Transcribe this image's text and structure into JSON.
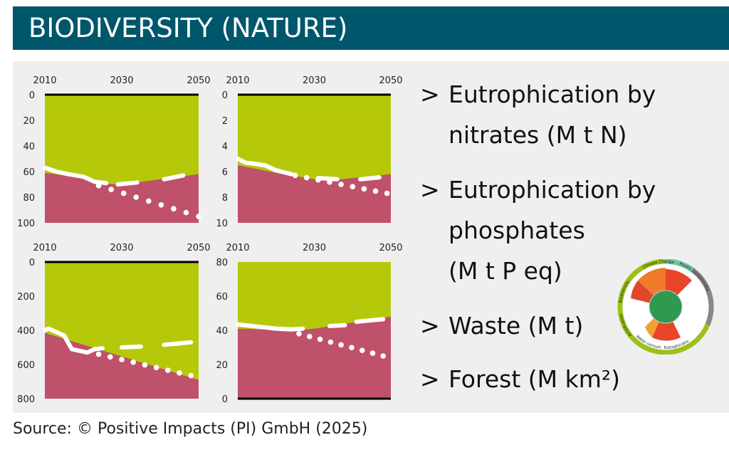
{
  "title": "BIODIVERSITY (NATURE)",
  "bullets": [
    {
      "marker": ">",
      "lines": [
        "Eutrophication by",
        "nitrates (M t N)"
      ]
    },
    {
      "marker": ">",
      "lines": [
        "Eutrophication by",
        "phosphates",
        "(M t P eq)"
      ]
    },
    {
      "marker": ">",
      "lines": [
        "Waste (M t)"
      ]
    },
    {
      "marker": ">",
      "lines": [
        "Forest (M km²)"
      ]
    }
  ],
  "source": "Source: © Positive Impacts (PI) GmbH (2025)",
  "wheel_labels": [
    "Biodiversity",
    "Climate Change",
    "Plastic contamination",
    "Eutrophication N/P",
    "Acidification",
    "Water consumption"
  ],
  "colors": {
    "banner": "#00566a",
    "safe": "#b5c90a",
    "risk": "#c0516a",
    "line": "#ffffff"
  },
  "chart_data": [
    {
      "type": "area",
      "title": "Eutrophication by nitrates (M t N)",
      "x_ticks": [
        "2010",
        "2030",
        "2050"
      ],
      "xlim": [
        2010,
        2050
      ],
      "y_ticks": [
        "0",
        "20",
        "40",
        "60",
        "80",
        "100"
      ],
      "ylim": [
        0,
        100
      ],
      "inverted": true,
      "boundary": [
        [
          2010,
          61
        ],
        [
          2020,
          65
        ],
        [
          2025,
          69
        ],
        [
          2029,
          70
        ],
        [
          2035,
          68
        ],
        [
          2040,
          66
        ],
        [
          2050,
          62
        ]
      ],
      "historical": [
        [
          2010,
          57
        ],
        [
          2013,
          60
        ],
        [
          2016,
          62
        ],
        [
          2020,
          64
        ],
        [
          2023,
          68
        ],
        [
          2026,
          69
        ]
      ],
      "trend": [
        [
          2024,
          71
        ],
        [
          2050,
          95
        ]
      ],
      "target": [
        [
          [
            2029,
            70
          ],
          [
            2034,
            68.5
          ]
        ],
        [
          [
            2041,
            66
          ],
          [
            2046,
            63
          ]
        ]
      ]
    },
    {
      "type": "area",
      "title": "Eutrophication by phosphates (M t P eq)",
      "x_ticks": [
        "2010",
        "2030",
        "2050"
      ],
      "xlim": [
        2010,
        2050
      ],
      "y_ticks": [
        "0",
        "2",
        "4",
        "6",
        "8",
        "10"
      ],
      "ylim": [
        0,
        10
      ],
      "inverted": true,
      "boundary": [
        [
          2010,
          5.5
        ],
        [
          2020,
          6.1
        ],
        [
          2030,
          6.6
        ],
        [
          2037,
          6.6
        ],
        [
          2050,
          6.2
        ]
      ],
      "historical": [
        [
          2010,
          5.0
        ],
        [
          2012,
          5.3
        ],
        [
          2017,
          5.5
        ],
        [
          2020,
          5.9
        ],
        [
          2024,
          6.2
        ]
      ],
      "trend": [
        [
          2025,
          6.3
        ],
        [
          2049,
          7.7
        ]
      ],
      "target": [
        [
          [
            2031,
            6.5
          ],
          [
            2036,
            6.6
          ]
        ],
        [
          [
            2042,
            6.6
          ],
          [
            2047,
            6.45
          ]
        ]
      ]
    },
    {
      "type": "area",
      "title": "Waste (M t)",
      "x_ticks": [
        "2010",
        "2030",
        "2050"
      ],
      "xlim": [
        2010,
        2050
      ],
      "y_ticks": [
        "0",
        "200",
        "400",
        "600",
        "800"
      ],
      "ylim": [
        0,
        800
      ],
      "inverted": true,
      "boundary": [
        [
          2010,
          415
        ],
        [
          2050,
          690
        ]
      ],
      "historical": [
        [
          2010,
          400
        ],
        [
          2011,
          390
        ],
        [
          2015,
          430
        ],
        [
          2017,
          510
        ],
        [
          2021,
          530
        ],
        [
          2023,
          510
        ],
        [
          2025,
          505
        ]
      ],
      "trend": [
        [
          2024,
          540
        ],
        [
          2048,
          665
        ]
      ],
      "target": [
        [
          [
            2030,
            500
          ],
          [
            2035,
            495
          ]
        ],
        [
          [
            2041,
            485
          ],
          [
            2048,
            470
          ]
        ]
      ]
    },
    {
      "type": "area",
      "title": "Forest (M km²)",
      "x_ticks": [
        "2010",
        "2030",
        "2050"
      ],
      "xlim": [
        2010,
        2050
      ],
      "y_ticks": [
        "0",
        "20",
        "40",
        "60",
        "80"
      ],
      "ylim": [
        0,
        80
      ],
      "inverted": false,
      "boundary": [
        [
          2010,
          41
        ],
        [
          2024,
          40
        ],
        [
          2030,
          41
        ],
        [
          2050,
          48
        ]
      ],
      "historical": [
        [
          2010,
          43.5
        ],
        [
          2020,
          41
        ],
        [
          2024,
          40.5
        ],
        [
          2027,
          41
        ]
      ],
      "trend": [
        [
          2026,
          38
        ],
        [
          2048,
          25
        ]
      ],
      "target": [
        [
          [
            2034,
            42.5
          ],
          [
            2038,
            43
          ]
        ],
        [
          [
            2041,
            45
          ],
          [
            2048,
            46.5
          ]
        ]
      ]
    }
  ]
}
